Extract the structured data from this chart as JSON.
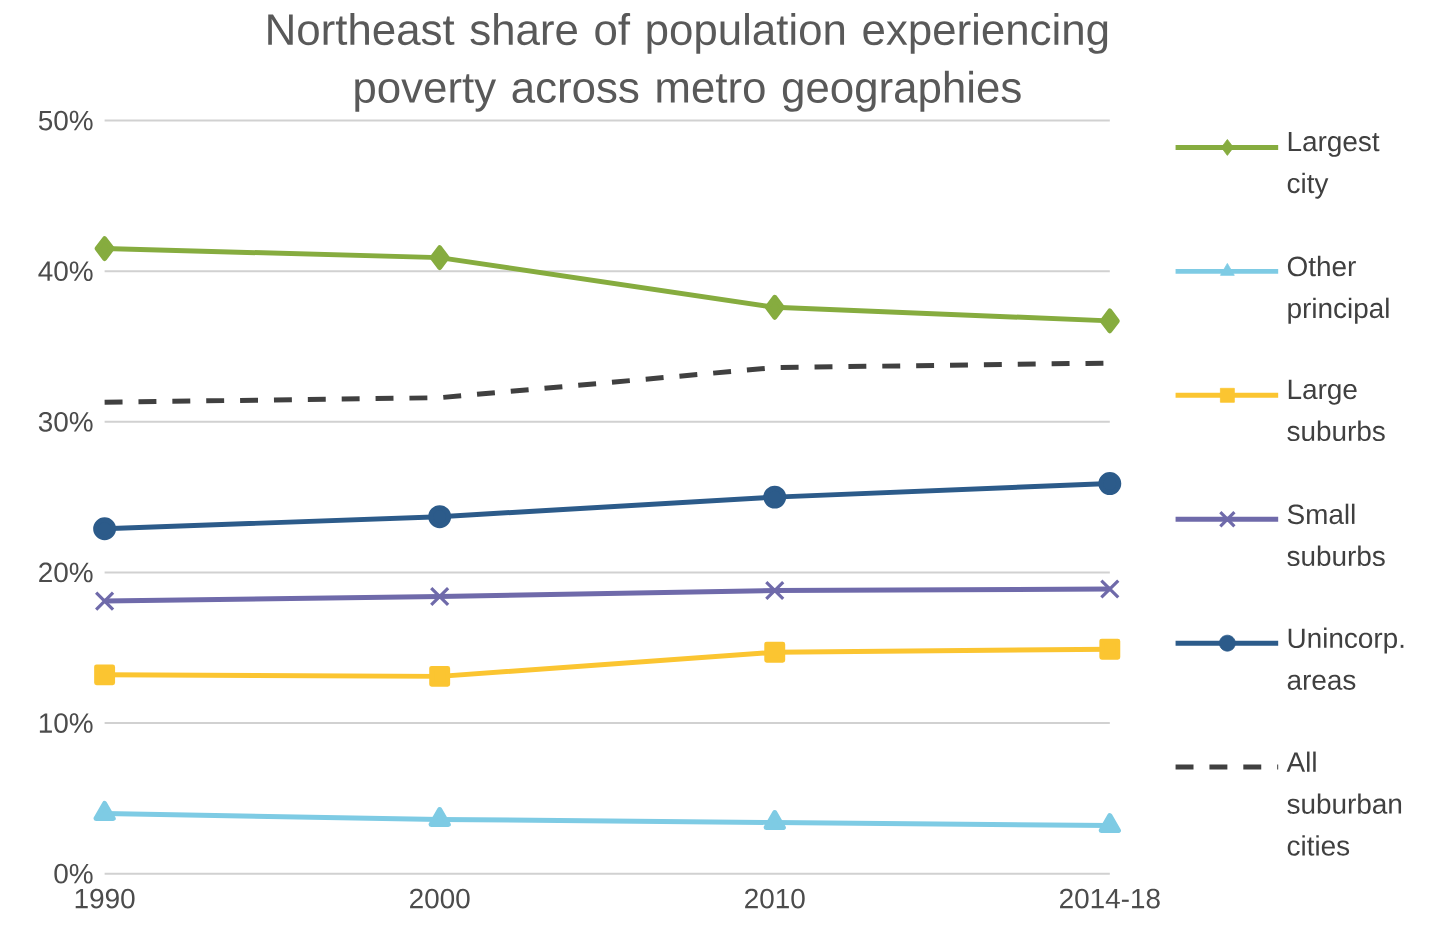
{
  "chart_data": {
    "type": "line",
    "title": "Northeast share of population experiencing poverty across metro geographies",
    "categories": [
      "1990",
      "2000",
      "2010",
      "2014-18"
    ],
    "series": [
      {
        "name": "Largest city",
        "color": "#86ac3f",
        "marker": "diamond",
        "line_style": "solid",
        "values": [
          41.5,
          40.9,
          37.6,
          36.7
        ]
      },
      {
        "name": "Other principal",
        "color": "#7ecbe4",
        "marker": "triangle",
        "line_style": "solid",
        "values": [
          4.0,
          3.6,
          3.4,
          3.2
        ]
      },
      {
        "name": "Large suburbs",
        "color": "#fbc531",
        "marker": "square",
        "line_style": "solid",
        "values": [
          13.2,
          13.1,
          14.7,
          14.9
        ]
      },
      {
        "name": "Small suburbs",
        "color": "#6f6aaa",
        "marker": "cross",
        "line_style": "solid",
        "values": [
          18.1,
          18.4,
          18.8,
          18.9
        ]
      },
      {
        "name": "Unincorp. areas",
        "color": "#2c5b8a",
        "marker": "circle",
        "line_style": "solid",
        "values": [
          22.9,
          23.7,
          25.0,
          25.9
        ]
      },
      {
        "name": "All suburban cities",
        "color": "#404040",
        "marker": "none",
        "line_style": "dashed",
        "values": [
          31.3,
          31.6,
          33.6,
          33.9
        ]
      }
    ],
    "ylim": [
      0,
      50
    ],
    "yticks": [
      {
        "value": 0,
        "label": "0%"
      },
      {
        "value": 10,
        "label": "10%"
      },
      {
        "value": 20,
        "label": "20%"
      },
      {
        "value": 30,
        "label": "30%"
      },
      {
        "value": 40,
        "label": "40%"
      },
      {
        "value": 50,
        "label": "50%"
      }
    ],
    "grid": "y",
    "legend": "right"
  }
}
